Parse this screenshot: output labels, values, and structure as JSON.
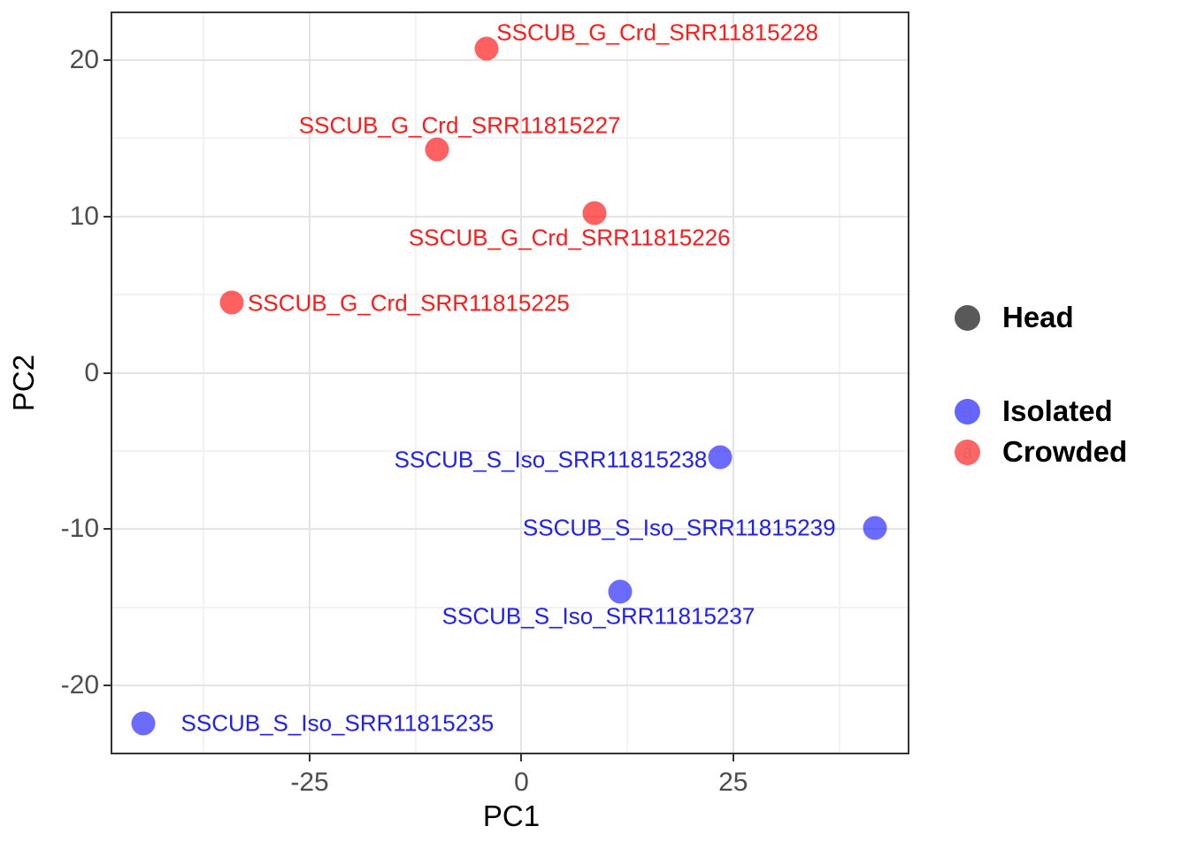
{
  "chart_data": {
    "type": "scatter",
    "title": "",
    "xlabel": "PC1",
    "ylabel": "PC2",
    "xlim": [
      -48.5,
      45.8
    ],
    "ylim": [
      -24.4,
      23.1
    ],
    "x_major_ticks": [
      -25,
      0,
      25
    ],
    "x_minor_ticks": [
      -37.5,
      -12.5,
      12.5,
      37.5
    ],
    "y_major_ticks": [
      -20,
      -10,
      0,
      10,
      20
    ],
    "y_minor_ticks": [
      -15,
      -5,
      5,
      15
    ],
    "grid": "on",
    "legend_position": "right",
    "series": [
      {
        "name": "Crowded",
        "point_color": "#FF0000",
        "point_opacity": 0.62,
        "label_color": "#FF1A1A",
        "points": [
          {
            "label": "SSCUB_G_Crd_SRR11815228",
            "x": -4.1,
            "y": 20.7,
            "label_dx": 193,
            "label_dy": -18
          },
          {
            "label": "SSCUB_G_Crd_SRR11815227",
            "x": -10.0,
            "y": 14.3,
            "label_dx": 26,
            "label_dy": -27
          },
          {
            "label": "SSCUB_G_Crd_SRR11815226",
            "x": 8.6,
            "y": 10.2,
            "label_dx": -28,
            "label_dy": 28
          },
          {
            "label": "SSCUB_G_Crd_SRR11815225",
            "x": -34.2,
            "y": 4.5,
            "label_dx": 200,
            "label_dy": 1
          }
        ]
      },
      {
        "name": "Isolated",
        "point_color": "#0000FF",
        "point_opacity": 0.58,
        "label_color": "#2020F0",
        "points": [
          {
            "label": "SSCUB_S_Iso_SRR11815238",
            "x": 23.4,
            "y": -5.4,
            "label_dx": -191,
            "label_dy": 3
          },
          {
            "label": "SSCUB_S_Iso_SRR11815239",
            "x": 41.7,
            "y": -9.9,
            "label_dx": -221,
            "label_dy": 0
          },
          {
            "label": "SSCUB_S_Iso_SRR11815237",
            "x": 11.6,
            "y": -14.0,
            "label_dx": -24,
            "label_dy": 28
          },
          {
            "label": "SSCUB_S_Iso_SRR11815235",
            "x": -44.6,
            "y": -22.4,
            "label_dx": 219,
            "label_dy": 0
          }
        ]
      }
    ],
    "legend": {
      "groups": [
        {
          "entries": [
            {
              "label": "Head",
              "key_glyph": "",
              "key_fill": "#595959",
              "key_opacity": 1,
              "key_text_color": ""
            }
          ]
        },
        {
          "entries": [
            {
              "label": "Isolated",
              "key_glyph": "a",
              "key_fill": "#0000FF",
              "key_opacity": 0.6,
              "key_text_color": "#0000C8"
            },
            {
              "label": "Crowded",
              "key_glyph": "a",
              "key_fill": "#FF0000",
              "key_opacity": 0.6,
              "key_text_color": "#C80000"
            }
          ]
        }
      ]
    }
  }
}
